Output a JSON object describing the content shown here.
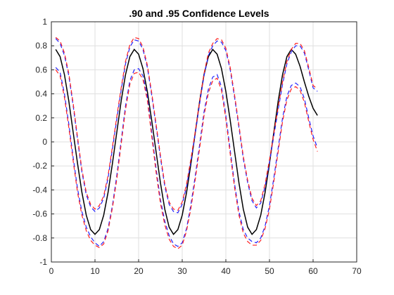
{
  "chart_data": {
    "type": "line",
    "title": ".90 and .95 Confidence Levels",
    "xlabel": "",
    "ylabel": "",
    "xlim": [
      0,
      70
    ],
    "ylim": [
      -1,
      1
    ],
    "grid": true,
    "xticks": [
      "0",
      "10",
      "20",
      "30",
      "40",
      "50",
      "60",
      "70"
    ],
    "yticks": [
      "-1",
      "-0.8",
      "-0.6",
      "-0.4",
      "-0.2",
      "0",
      "0.2",
      "0.4",
      "0.6",
      "0.8",
      "1"
    ],
    "x": [
      1,
      2,
      3,
      4,
      5,
      6,
      7,
      8,
      9,
      10,
      11,
      12,
      13,
      14,
      15,
      16,
      17,
      18,
      19,
      20,
      21,
      22,
      23,
      24,
      25,
      26,
      27,
      28,
      29,
      30,
      31,
      32,
      33,
      34,
      35,
      36,
      37,
      38,
      39,
      40,
      41,
      42,
      43,
      44,
      45,
      46,
      47,
      48,
      49,
      50,
      51,
      52,
      53,
      54,
      55,
      56,
      57,
      58,
      59,
      60,
      61
    ],
    "series": [
      {
        "color": "#000000",
        "style": "solid",
        "values": [
          0.77,
          0.71,
          0.56,
          0.34,
          0.08,
          -0.18,
          -0.42,
          -0.61,
          -0.73,
          -0.77,
          -0.73,
          -0.61,
          -0.42,
          -0.18,
          0.08,
          0.34,
          0.56,
          0.71,
          0.77,
          0.73,
          0.61,
          0.42,
          0.18,
          -0.08,
          -0.34,
          -0.56,
          -0.71,
          -0.77,
          -0.73,
          -0.61,
          -0.42,
          -0.18,
          0.08,
          0.34,
          0.56,
          0.71,
          0.77,
          0.73,
          0.61,
          0.42,
          0.18,
          -0.08,
          -0.34,
          -0.56,
          -0.71,
          -0.77,
          -0.73,
          -0.61,
          -0.42,
          -0.18,
          0.08,
          0.34,
          0.56,
          0.71,
          0.77,
          0.73,
          0.63,
          0.5,
          0.38,
          0.28,
          0.22
        ]
      },
      {
        "color": "#2222ff",
        "style": "dashed",
        "values": [
          0.86,
          0.82,
          0.72,
          0.55,
          0.3,
          0.02,
          -0.25,
          -0.44,
          -0.54,
          -0.58,
          -0.55,
          -0.47,
          -0.3,
          -0.06,
          0.19,
          0.43,
          0.65,
          0.79,
          0.85,
          0.84,
          0.77,
          0.62,
          0.39,
          0.13,
          -0.13,
          -0.37,
          -0.52,
          -0.58,
          -0.59,
          -0.52,
          -0.37,
          -0.16,
          0.07,
          0.32,
          0.55,
          0.72,
          0.8,
          0.84,
          0.83,
          0.76,
          0.6,
          0.37,
          0.12,
          -0.14,
          -0.34,
          -0.49,
          -0.55,
          -0.51,
          -0.37,
          -0.17,
          0.05,
          0.27,
          0.48,
          0.65,
          0.75,
          0.8,
          0.8,
          0.74,
          0.6,
          0.45,
          0.42
        ]
      },
      {
        "color": "#ff2222",
        "style": "dashed",
        "values": [
          0.87,
          0.84,
          0.74,
          0.57,
          0.32,
          0.04,
          -0.23,
          -0.42,
          -0.52,
          -0.56,
          -0.53,
          -0.45,
          -0.28,
          -0.04,
          0.21,
          0.45,
          0.67,
          0.81,
          0.87,
          0.86,
          0.79,
          0.64,
          0.41,
          0.15,
          -0.11,
          -0.35,
          -0.5,
          -0.56,
          -0.57,
          -0.5,
          -0.35,
          -0.14,
          0.09,
          0.34,
          0.57,
          0.74,
          0.82,
          0.86,
          0.85,
          0.78,
          0.62,
          0.39,
          0.14,
          -0.12,
          -0.32,
          -0.47,
          -0.53,
          -0.49,
          -0.35,
          -0.15,
          0.07,
          0.29,
          0.5,
          0.67,
          0.77,
          0.82,
          0.82,
          0.76,
          0.62,
          0.47,
          0.44
        ]
      },
      {
        "color": "#2222ff",
        "style": "dashed",
        "values": [
          0.62,
          0.58,
          0.4,
          0.15,
          -0.13,
          -0.39,
          -0.58,
          -0.71,
          -0.79,
          -0.84,
          -0.87,
          -0.83,
          -0.72,
          -0.53,
          -0.28,
          0.01,
          0.3,
          0.51,
          0.6,
          0.61,
          0.55,
          0.38,
          0.08,
          -0.22,
          -0.48,
          -0.66,
          -0.78,
          -0.85,
          -0.87,
          -0.84,
          -0.72,
          -0.52,
          -0.28,
          -0.02,
          0.25,
          0.44,
          0.54,
          0.56,
          0.46,
          0.22,
          -0.07,
          -0.35,
          -0.58,
          -0.73,
          -0.8,
          -0.83,
          -0.84,
          -0.8,
          -0.7,
          -0.53,
          -0.3,
          -0.05,
          0.2,
          0.38,
          0.47,
          0.49,
          0.46,
          0.36,
          0.2,
          0.05,
          -0.05
        ]
      },
      {
        "color": "#ff2222",
        "style": "dashed",
        "values": [
          0.6,
          0.55,
          0.37,
          0.12,
          -0.16,
          -0.42,
          -0.61,
          -0.74,
          -0.82,
          -0.86,
          -0.88,
          -0.85,
          -0.74,
          -0.55,
          -0.31,
          -0.02,
          0.27,
          0.48,
          0.57,
          0.58,
          0.52,
          0.35,
          0.05,
          -0.25,
          -0.51,
          -0.69,
          -0.81,
          -0.87,
          -0.89,
          -0.86,
          -0.74,
          -0.55,
          -0.31,
          -0.05,
          0.22,
          0.41,
          0.51,
          0.53,
          0.43,
          0.19,
          -0.1,
          -0.38,
          -0.61,
          -0.76,
          -0.83,
          -0.86,
          -0.86,
          -0.82,
          -0.72,
          -0.56,
          -0.33,
          -0.08,
          0.17,
          0.35,
          0.44,
          0.46,
          0.43,
          0.33,
          0.17,
          0.02,
          -0.08
        ]
      }
    ]
  }
}
